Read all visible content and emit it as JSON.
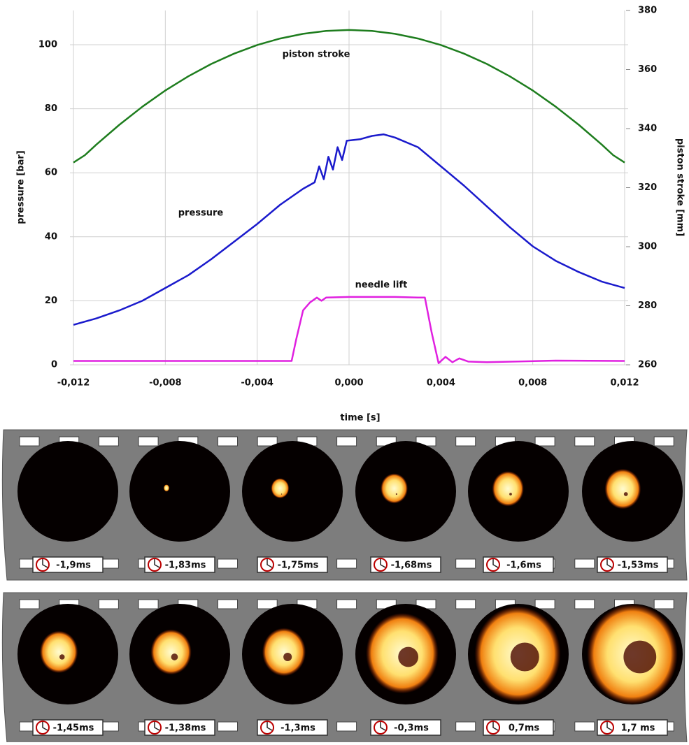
{
  "chart_data": {
    "type": "line",
    "xlabel": "time [s]",
    "ylabel": "pressure [bar]",
    "y2label": "piston stroke [mm]",
    "xlim": [
      -0.012,
      0.012
    ],
    "xticks": [
      {
        "value": -0.012,
        "label": "-0,012"
      },
      {
        "value": -0.008,
        "label": "-0,008"
      },
      {
        "value": -0.004,
        "label": "-0,004"
      },
      {
        "value": 0,
        "label": "0,000"
      },
      {
        "value": 0.004,
        "label": "0,004"
      },
      {
        "value": 0.008,
        "label": "0,008"
      },
      {
        "value": 0.012,
        "label": "0,012"
      }
    ],
    "ylim": [
      0,
      110.7
    ],
    "yticks": [
      0,
      20,
      40,
      60,
      80,
      100
    ],
    "y2lim": [
      260,
      380
    ],
    "y2ticks": [
      260,
      280,
      300,
      320,
      340,
      360,
      380
    ],
    "grid": true,
    "annotations": [
      "piston stroke",
      "pressure",
      "needle lift"
    ],
    "series": [
      {
        "name": "piston stroke",
        "color": "#1e7d1e",
        "axis": "y2",
        "x": [
          -0.012,
          -0.0115,
          -0.011,
          -0.01,
          -0.009,
          -0.008,
          -0.007,
          -0.006,
          -0.005,
          -0.004,
          -0.003,
          -0.002,
          -0.001,
          0,
          0.001,
          0.002,
          0.003,
          0.004,
          0.005,
          0.006,
          0.007,
          0.008,
          0.009,
          0.01,
          0.011,
          0.0115,
          0.012
        ],
        "values": [
          328.5,
          331,
          334.6,
          341.3,
          347.4,
          352.9,
          357.7,
          361.9,
          365.4,
          368.3,
          370.5,
          372.1,
          373.1,
          373.4,
          373.1,
          372.1,
          370.5,
          368.3,
          365.4,
          361.9,
          357.7,
          352.9,
          347.4,
          341.3,
          334.6,
          331,
          328.5
        ]
      },
      {
        "name": "pressure",
        "color": "#1a1acc",
        "x": [
          -0.012,
          -0.011,
          -0.01,
          -0.009,
          -0.008,
          -0.007,
          -0.006,
          -0.005,
          -0.004,
          -0.003,
          -0.002,
          -0.0015,
          -0.0013,
          -0.0011,
          -0.0009,
          -0.0007,
          -0.0005,
          -0.0003,
          -0.0001,
          0.0005,
          0.001,
          0.0015,
          0.002,
          0.003,
          0.004,
          0.005,
          0.006,
          0.007,
          0.008,
          0.009,
          0.01,
          0.011,
          0.012
        ],
        "values": [
          12.5,
          14.5,
          17,
          20,
          24,
          28,
          33,
          38.5,
          44,
          50,
          55,
          57,
          62,
          58,
          65,
          61,
          68,
          64,
          70,
          70.5,
          71.5,
          72,
          71,
          68,
          62,
          56,
          49.5,
          43,
          37,
          32.5,
          29,
          26,
          24
        ]
      },
      {
        "name": "needle lift",
        "color": "#e020e0",
        "x": [
          -0.012,
          -0.0025,
          -0.0023,
          -0.002,
          -0.0017,
          -0.0014,
          -0.0012,
          -0.001,
          0,
          0.001,
          0.002,
          0.003,
          0.0033,
          0.0036,
          0.0039,
          0.0042,
          0.0045,
          0.0048,
          0.0052,
          0.006,
          0.009,
          0.012
        ],
        "values": [
          1.2,
          1.2,
          8,
          17,
          19.5,
          21,
          20,
          21,
          21.2,
          21.2,
          21.2,
          21,
          21,
          10,
          0.5,
          2.5,
          0.8,
          2,
          1,
          0.8,
          1.3,
          1.2
        ]
      }
    ]
  },
  "film_strips": [
    [
      "-1,9ms",
      "-1,83ms",
      "-1,75ms",
      "-1,68ms",
      "-1,6ms",
      "-1,53ms"
    ],
    [
      "-1,45ms",
      "-1,38ms",
      "-1,3ms",
      "-0,3ms",
      "0,7ms",
      "1,7 ms"
    ]
  ]
}
